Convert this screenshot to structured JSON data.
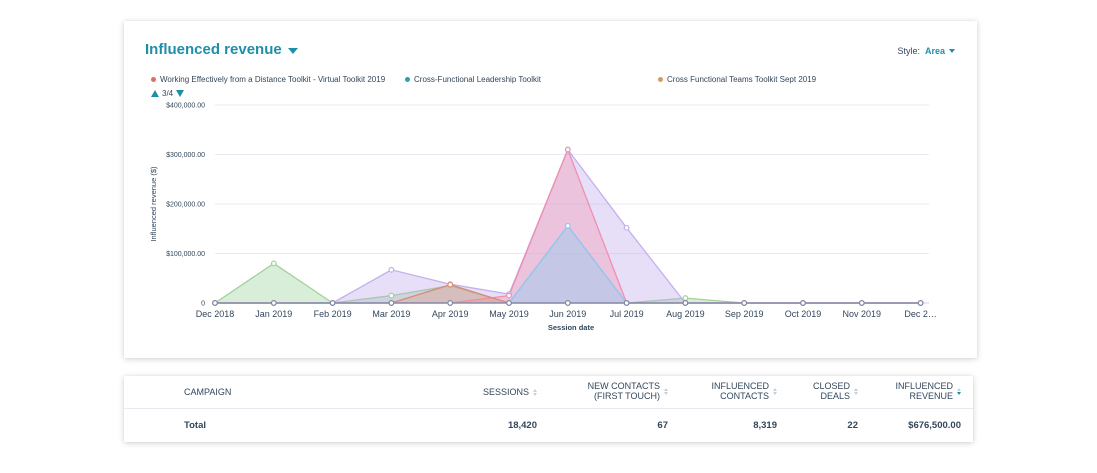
{
  "card": {
    "title": "Influenced revenue",
    "style_label": "Style:",
    "style_value": "Area"
  },
  "legend": {
    "items": [
      {
        "label": "Working Effectively from a Distance Toolkit - Virtual Toolkit 2019",
        "color": "#e06d5e"
      },
      {
        "label": "Cross-Functional Leadership Toolkit",
        "color": "#2b9fb3"
      },
      {
        "label": "Cross Functional Teams Toolkit Sept 2019",
        "color": "#d79a5e"
      }
    ],
    "page": "3/4"
  },
  "chart_data": {
    "type": "area",
    "xlabel": "Session date",
    "ylabel": "Influenced revenue ($)",
    "ylim": [
      0,
      400000
    ],
    "y_ticks": [
      "$400,000.00",
      "$300,000.00",
      "$200,000.00",
      "$100,000.00",
      "0"
    ],
    "grid": true,
    "legend_position": "top",
    "categories": [
      "Dec 2018",
      "Jan 2019",
      "Feb 2019",
      "Mar 2019",
      "Apr 2019",
      "May 2019",
      "Jun 2019",
      "Jul 2019",
      "Aug 2019",
      "Sep 2019",
      "Oct 2019",
      "Nov 2019",
      "Dec 2…"
    ],
    "series": [
      {
        "color": "#9fd39a",
        "fill": "rgba(130,200,125,0.30)",
        "values": [
          0,
          80000,
          0,
          15000,
          35000,
          0,
          0,
          0,
          10000,
          0,
          0,
          0,
          0
        ]
      },
      {
        "color": "#c3b0ec",
        "fill": "rgba(190,170,235,0.38)",
        "values": [
          0,
          0,
          0,
          67000,
          38000,
          18000,
          310000,
          152000,
          0,
          0,
          0,
          0,
          0
        ]
      },
      {
        "color": "#f08fb0",
        "fill": "rgba(245,150,180,0.38)",
        "values": [
          0,
          0,
          0,
          0,
          0,
          15000,
          310000,
          0,
          0,
          0,
          0,
          0,
          0
        ]
      },
      {
        "color": "#8dc6ec",
        "fill": "rgba(150,205,245,0.45)",
        "values": [
          0,
          0,
          0,
          0,
          0,
          0,
          156000,
          0,
          0,
          0,
          0,
          0,
          0
        ]
      },
      {
        "color": "#d98b74",
        "fill": "rgba(225,150,120,0.35)",
        "values": [
          0,
          0,
          0,
          0,
          37000,
          0,
          0,
          0,
          0,
          0,
          0,
          0,
          0
        ]
      },
      {
        "color": "#7b85a8",
        "fill": "rgba(0,0,0,0)",
        "values": [
          0,
          0,
          0,
          0,
          0,
          0,
          0,
          0,
          0,
          0,
          0,
          0,
          0
        ]
      }
    ]
  },
  "table": {
    "headers": {
      "campaign": "CAMPAIGN",
      "sessions": "SESSIONS",
      "new_contacts_1": "NEW CONTACTS",
      "new_contacts_2": "(FIRST TOUCH)",
      "influenced_contacts_1": "INFLUENCED",
      "influenced_contacts_2": "CONTACTS",
      "closed_deals_1": "CLOSED",
      "closed_deals_2": "DEALS",
      "influenced_revenue_1": "INFLUENCED",
      "influenced_revenue_2": "REVENUE"
    },
    "total": {
      "label": "Total",
      "sessions": "18,420",
      "new_contacts": "67",
      "influenced_contacts": "8,319",
      "closed_deals": "22",
      "influenced_revenue": "$676,500.00"
    }
  }
}
